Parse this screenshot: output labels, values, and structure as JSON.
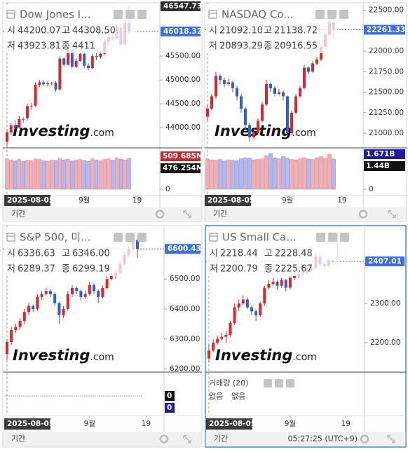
{
  "watermark": [
    "Investing",
    ".com"
  ],
  "period_label": "기간",
  "time": "05:27:25 (UTC+9)",
  "colors": {
    "up": "#d9282b",
    "down": "#2e5fd1",
    "up_volume": "#eeb0b6",
    "down_volume": "#b4b6ee"
  },
  "chart_data": [
    {
      "type": "candlestick",
      "title": "Dow Jones I...",
      "ohlc_info": {
        "labels": [
          "시",
          "고",
          "저",
          "종"
        ],
        "values": [
          "44200.07",
          "44308.50",
          "43923.81",
          "4411"
        ],
        "color": "#555555"
      },
      "ohlc": [
        [
          43700,
          43950,
          43600,
          43900
        ],
        [
          43900,
          44100,
          43850,
          44050
        ],
        [
          44050,
          44150,
          43950,
          44000
        ],
        [
          44000,
          44250,
          43980,
          44180
        ],
        [
          44180,
          44220,
          44100,
          44170
        ],
        [
          44200,
          44500,
          44150,
          44450
        ],
        [
          44450,
          44520,
          44380,
          44460
        ],
        [
          44460,
          44950,
          44440,
          44900
        ],
        [
          44900,
          45000,
          44850,
          44950
        ],
        [
          44950,
          45000,
          44880,
          44910
        ],
        [
          44910,
          44970,
          44870,
          44930
        ],
        [
          44930,
          44960,
          44880,
          44940
        ],
        [
          44940,
          44980,
          44750,
          44800
        ],
        [
          44800,
          45500,
          44780,
          45450
        ],
        [
          45450,
          45480,
          45280,
          45320
        ],
        [
          45320,
          45700,
          45300,
          45620
        ],
        [
          45620,
          45650,
          45250,
          45280
        ],
        [
          45280,
          45450,
          45250,
          45400
        ],
        [
          45400,
          45600,
          45380,
          45550
        ],
        [
          45550,
          45580,
          45250,
          45300
        ],
        [
          45300,
          45350,
          45200,
          45250
        ],
        [
          45250,
          45550,
          45230,
          45500
        ],
        [
          45500,
          45560,
          45420,
          45480
        ],
        [
          45480,
          45600,
          45450,
          45550
        ],
        [
          45550,
          45850,
          45520,
          45800
        ],
        [
          45800,
          45950,
          45750,
          45900
        ],
        [
          45900,
          45950,
          45820,
          45870
        ],
        [
          45870,
          46150,
          45850,
          46100
        ],
        [
          46100,
          46200,
          45700,
          45750
        ],
        [
          45750,
          46250,
          45720,
          46200
        ],
        [
          46200,
          46547.73,
          45980,
          46018.32
        ]
      ],
      "ylim": [
        43590,
        46620
      ],
      "yticks": [
        {
          "value": 44000,
          "label": "44000.00"
        },
        {
          "value": 44500,
          "label": "44500.00"
        },
        {
          "value": 45000,
          "label": "45000.00"
        },
        {
          "value": 45500,
          "label": "45500.00"
        }
      ],
      "price_labels": [
        46547.73,
        46018.32
      ],
      "price_label_colors": [
        "#2b2b2b",
        "#3d6fe0"
      ],
      "xticks": [
        {
          "value": 0,
          "label": "2025-08-05"
        },
        {
          "value": 19,
          "label": "9월"
        },
        {
          "value": 32,
          "label": "19"
        }
      ],
      "volume": [
        470,
        455,
        440,
        460,
        430,
        450,
        445,
        470,
        460,
        440,
        435,
        450,
        445,
        480,
        455,
        465,
        440,
        450,
        460,
        445,
        430,
        470,
        455,
        440,
        460,
        470,
        450,
        480,
        465,
        455,
        476.254
      ],
      "vylim": [
        0,
        630
      ],
      "vyticks": [
        0
      ],
      "volume_labels": [
        {
          "value": 509.685,
          "label": "509.685M"
        },
        {
          "value": 476.254,
          "label": "476.254M"
        }
      ],
      "volume_label_colors": [
        "#c8282c",
        "#111111"
      ]
    },
    {
      "type": "candlestick",
      "title": "NASDAQ Co...",
      "ohlc_info": {
        "labels": [
          "시",
          "고",
          "저",
          "종"
        ],
        "values": [
          "21092.10",
          "21138.72",
          "20893.29",
          "20916.55"
        ],
        "color": "#555555"
      },
      "ohlc": [
        [
          21200,
          21350,
          21150,
          21300
        ],
        [
          21300,
          21480,
          21280,
          21450
        ],
        [
          21450,
          21750,
          21420,
          21700
        ],
        [
          21700,
          21720,
          21600,
          21650
        ],
        [
          21650,
          21680,
          21560,
          21600
        ],
        [
          21600,
          21660,
          21580,
          21620
        ],
        [
          21620,
          21640,
          21500,
          21550
        ],
        [
          21550,
          21580,
          21400,
          21450
        ],
        [
          21450,
          21480,
          21250,
          21300
        ],
        [
          21300,
          21320,
          21050,
          21100
        ],
        [
          21100,
          21120,
          20900,
          20950
        ],
        [
          20950,
          21050,
          20920,
          21000
        ],
        [
          21000,
          21180,
          20980,
          21150
        ],
        [
          21150,
          21380,
          21130,
          21350
        ],
        [
          21350,
          21650,
          21330,
          21600
        ],
        [
          21600,
          21620,
          21500,
          21550
        ],
        [
          21550,
          21580,
          21450,
          21480
        ],
        [
          21480,
          21540,
          21460,
          21500
        ],
        [
          21500,
          21520,
          21400,
          21450
        ],
        [
          21450,
          21460,
          20980,
          21000
        ],
        [
          21000,
          21280,
          20980,
          21250
        ],
        [
          21250,
          21480,
          21230,
          21450
        ],
        [
          21450,
          21580,
          21430,
          21550
        ],
        [
          21550,
          21830,
          21540,
          21800
        ],
        [
          21800,
          21820,
          21720,
          21750
        ],
        [
          21750,
          21880,
          21740,
          21850
        ],
        [
          21850,
          21930,
          21830,
          21900
        ],
        [
          21900,
          22080,
          21880,
          22050
        ],
        [
          22050,
          22230,
          22030,
          22200
        ],
        [
          22200,
          22380,
          22180,
          22350
        ],
        [
          22350,
          22400,
          22150,
          22261.33
        ]
      ],
      "ylim": [
        20830,
        22590
      ],
      "yticks": [
        {
          "value": 21000,
          "label": "21000.00"
        },
        {
          "value": 21250,
          "label": "21250.00"
        },
        {
          "value": 21500,
          "label": "21500.00"
        },
        {
          "value": 21750,
          "label": "21750.00"
        },
        {
          "value": 22000,
          "label": "22000.00"
        },
        {
          "value": 22500,
          "label": "22500.00"
        }
      ],
      "price_labels": [
        22261.33
      ],
      "price_label_colors": [
        "#3d6fe0"
      ],
      "xticks": [
        {
          "value": 0,
          "label": "2025-08-05"
        },
        {
          "value": 19,
          "label": "9월"
        },
        {
          "value": 32,
          "label": "19"
        }
      ],
      "volume": [
        1.45,
        1.4,
        1.38,
        1.42,
        1.35,
        1.4,
        1.38,
        1.36,
        1.45,
        1.5,
        1.48,
        1.4,
        1.42,
        1.45,
        1.6,
        1.7,
        1.5,
        1.45,
        1.55,
        1.48,
        1.42,
        1.4,
        1.45,
        1.5,
        1.44,
        1.42,
        1.5,
        1.55,
        1.48,
        1.671,
        1.44
      ],
      "vylim": [
        0,
        1.94
      ],
      "vyticks": [
        0
      ],
      "volume_labels": [
        {
          "value": 1.671,
          "label": "1.671B"
        },
        {
          "value": 1.44,
          "label": "1.44B"
        }
      ],
      "volume_label_colors": [
        "#1c1ca6",
        "#111111"
      ]
    },
    {
      "type": "candlestick",
      "title": "S&P 500, 미...",
      "ohlc_info": {
        "labels": [
          "시",
          "고",
          "저",
          "종"
        ],
        "values": [
          "6336.63",
          "6346.00",
          "6289.37",
          "6299.19"
        ],
        "color": "#555555"
      },
      "ohlc": [
        [
          6250,
          6300,
          6230,
          6290
        ],
        [
          6290,
          6340,
          6280,
          6330
        ],
        [
          6330,
          6350,
          6320,
          6340
        ],
        [
          6340,
          6370,
          6330,
          6360
        ],
        [
          6360,
          6400,
          6350,
          6390
        ],
        [
          6390,
          6420,
          6380,
          6410
        ],
        [
          6410,
          6415,
          6390,
          6400
        ],
        [
          6400,
          6450,
          6395,
          6440
        ],
        [
          6440,
          6460,
          6430,
          6450
        ],
        [
          6450,
          6470,
          6445,
          6460
        ],
        [
          6460,
          6465,
          6440,
          6450
        ],
        [
          6450,
          6455,
          6410,
          6420
        ],
        [
          6420,
          6425,
          6350,
          6380
        ],
        [
          6380,
          6410,
          6370,
          6400
        ],
        [
          6400,
          6460,
          6395,
          6450
        ],
        [
          6450,
          6480,
          6440,
          6470
        ],
        [
          6470,
          6475,
          6450,
          6460
        ],
        [
          6460,
          6465,
          6430,
          6440
        ],
        [
          6440,
          6460,
          6435,
          6450
        ],
        [
          6450,
          6490,
          6445,
          6480
        ],
        [
          6480,
          6485,
          6450,
          6460
        ],
        [
          6460,
          6465,
          6420,
          6440
        ],
        [
          6440,
          6480,
          6435,
          6470
        ],
        [
          6470,
          6510,
          6465,
          6500
        ],
        [
          6500,
          6520,
          6495,
          6510
        ],
        [
          6510,
          6530,
          6500,
          6520
        ],
        [
          6520,
          6560,
          6515,
          6550
        ],
        [
          6550,
          6590,
          6545,
          6580
        ],
        [
          6580,
          6610,
          6575,
          6600
        ],
        [
          6600,
          6640,
          6590,
          6630
        ],
        [
          6630,
          6635,
          6570,
          6600.43
        ]
      ],
      "ylim": [
        6192,
        6678
      ],
      "yticks": [
        {
          "value": 6200,
          "label": "6200.00"
        },
        {
          "value": 6300,
          "label": "6300.00"
        },
        {
          "value": 6400,
          "label": "6400.00"
        },
        {
          "value": 6500,
          "label": "6500.00"
        }
      ],
      "price_labels": [
        6600.43
      ],
      "price_label_colors": [
        "#3d6fe0"
      ],
      "xticks": [
        {
          "value": 0,
          "label": "2025-08-05"
        },
        {
          "value": 19,
          "label": "9월"
        },
        {
          "value": 32,
          "label": "19"
        }
      ],
      "vylim": [
        0,
        1
      ],
      "volume_labels": [
        0,
        0
      ],
      "volume_label_colors": [
        "#111111",
        "#1c1ca6"
      ]
    },
    {
      "type": "candlestick",
      "title": "US Small Ca...",
      "ohlc_info": {
        "labels": [
          "시",
          "고",
          "저",
          "종"
        ],
        "values": [
          "2218.44",
          "2228.48",
          "2200.79",
          "2225.67"
        ],
        "color": "#8b1c1c"
      },
      "ohlc": [
        [
          2160,
          2195,
          2150,
          2180
        ],
        [
          2180,
          2210,
          2175,
          2200
        ],
        [
          2200,
          2218,
          2195,
          2210
        ],
        [
          2210,
          2225,
          2205,
          2215
        ],
        [
          2215,
          2230,
          2200,
          2220
        ],
        [
          2220,
          2255,
          2215,
          2250
        ],
        [
          2250,
          2300,
          2245,
          2290
        ],
        [
          2290,
          2310,
          2280,
          2300
        ],
        [
          2300,
          2320,
          2295,
          2310
        ],
        [
          2310,
          2315,
          2285,
          2290
        ],
        [
          2290,
          2295,
          2270,
          2280
        ],
        [
          2280,
          2285,
          2255,
          2270
        ],
        [
          2270,
          2305,
          2265,
          2300
        ],
        [
          2300,
          2345,
          2295,
          2340
        ],
        [
          2340,
          2360,
          2335,
          2350
        ],
        [
          2350,
          2365,
          2345,
          2355
        ],
        [
          2355,
          2360,
          2335,
          2345
        ],
        [
          2345,
          2365,
          2340,
          2360
        ],
        [
          2360,
          2362,
          2330,
          2340
        ],
        [
          2340,
          2370,
          2335,
          2365
        ],
        [
          2365,
          2378,
          2360,
          2370
        ],
        [
          2370,
          2382,
          2365,
          2375
        ],
        [
          2375,
          2388,
          2370,
          2380
        ],
        [
          2380,
          2392,
          2375,
          2385
        ],
        [
          2385,
          2398,
          2380,
          2390
        ],
        [
          2390,
          2425,
          2385,
          2420
        ],
        [
          2420,
          2422,
          2395,
          2400
        ],
        [
          2400,
          2405,
          2388,
          2395
        ],
        [
          2395,
          2415,
          2390,
          2410
        ],
        [
          2410,
          2412,
          2398,
          2405
        ],
        [
          2405,
          2480,
          2400,
          2407.01
        ]
      ],
      "ylim": [
        2127,
        2498
      ],
      "yticks": [
        {
          "value": 2200,
          "label": "2200.00"
        },
        {
          "value": 2300,
          "label": "2300.00"
        }
      ],
      "price_labels": [
        2407.01
      ],
      "price_label_colors": [
        "#3d6fe0"
      ],
      "xticks": [
        {
          "value": 0,
          "label": "2025-08-05"
        },
        {
          "value": 19,
          "label": "9월"
        },
        {
          "value": 32,
          "label": "19"
        }
      ],
      "volume_legend": {
        "title": "거래량 (20)",
        "values": [
          "없음",
          "없음"
        ],
        "colors": [
          "#d9282b",
          "#222222"
        ]
      }
    }
  ]
}
